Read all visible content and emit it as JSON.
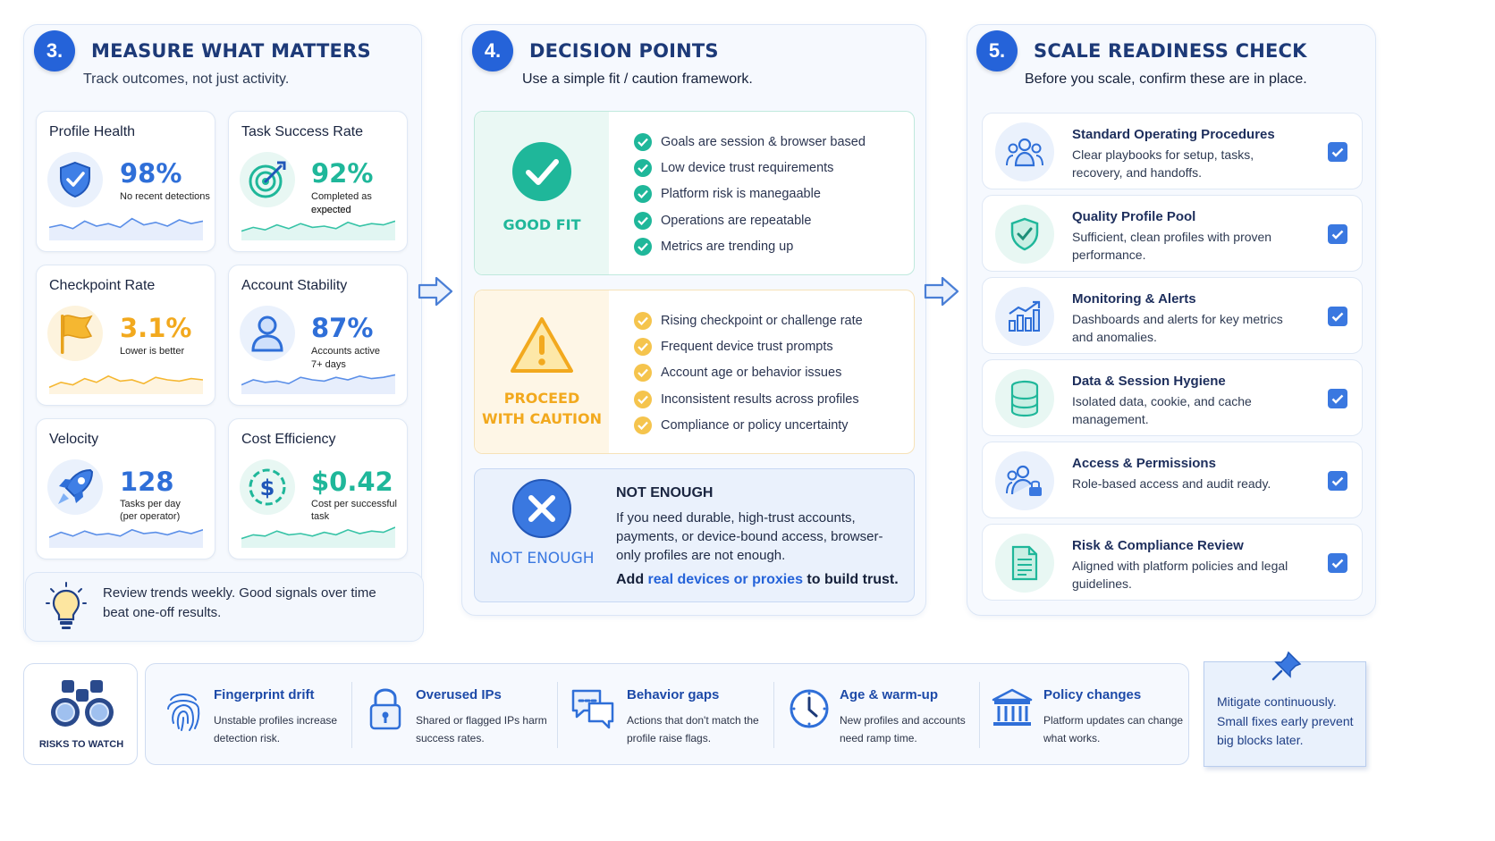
{
  "colors": {
    "brand_blue": "#2563d9",
    "teal": "#1fb79a",
    "amber": "#f5b731",
    "navy": "#1d3a78"
  },
  "section3": {
    "number": "3.",
    "title": "MEASURE WHAT MATTERS",
    "subtitle": "Track outcomes, not just activity.",
    "metrics": [
      {
        "title": "Profile Health",
        "value": "98%",
        "note": "No recent detections",
        "icon": "shield-check-icon",
        "trend": [
          0.45,
          0.55,
          0.4,
          0.7,
          0.5,
          0.6,
          0.45,
          0.8,
          0.55,
          0.65,
          0.5,
          0.75,
          0.6,
          0.7
        ]
      },
      {
        "title": "Task Success Rate",
        "value": "92%",
        "note": "Completed as expected",
        "note2": "expected",
        "icon": "target-icon",
        "trend": [
          0.3,
          0.45,
          0.35,
          0.55,
          0.4,
          0.6,
          0.45,
          0.5,
          0.4,
          0.65,
          0.5,
          0.6,
          0.55,
          0.7
        ]
      },
      {
        "title": "Checkpoint Rate",
        "value": "3.1%",
        "note": "Lower is better",
        "icon": "flag-icon",
        "trend": [
          0.2,
          0.4,
          0.3,
          0.55,
          0.4,
          0.65,
          0.45,
          0.5,
          0.35,
          0.6,
          0.5,
          0.45,
          0.55,
          0.5
        ]
      },
      {
        "title": "Account Stability",
        "value": "87%",
        "note": "Accounts active",
        "note2": "7+ days",
        "icon": "user-icon",
        "trend": [
          0.3,
          0.5,
          0.4,
          0.45,
          0.35,
          0.6,
          0.5,
          0.45,
          0.6,
          0.5,
          0.65,
          0.55,
          0.6,
          0.7
        ]
      },
      {
        "title": "Velocity",
        "value": "128",
        "note": "Tasks per day",
        "note2": "(per operator)",
        "icon": "rocket-icon",
        "trend": [
          0.35,
          0.55,
          0.4,
          0.6,
          0.45,
          0.5,
          0.4,
          0.65,
          0.5,
          0.55,
          0.45,
          0.6,
          0.5,
          0.65
        ]
      },
      {
        "title": "Cost Efficiency",
        "value": "$0.42",
        "note": "Cost per successful",
        "note2": "task",
        "icon": "dollar-icon",
        "trend": [
          0.3,
          0.45,
          0.4,
          0.6,
          0.45,
          0.5,
          0.4,
          0.55,
          0.45,
          0.65,
          0.5,
          0.6,
          0.55,
          0.75
        ]
      }
    ],
    "tip": "Review trends weekly. Good signals over time beat one-off results."
  },
  "section4": {
    "number": "4.",
    "title": "DECISION POINTS",
    "subtitle": "Use a simple fit / caution framework.",
    "good_fit": {
      "label": "GOOD FIT",
      "items": [
        "Goals are session & browser based",
        "Low device trust requirements",
        "Platform risk is manegaable",
        "Operations are repeatable",
        "Metrics are trending up"
      ]
    },
    "caution": {
      "label_line1": "PROCEED",
      "label_line2": "WITH CAUTION",
      "items": [
        "Rising checkpoint or challenge rate",
        "Frequent device trust prompts",
        "Account age or behavior issues",
        "Inconsistent results across profiles",
        "Compliance or policy uncertainty"
      ]
    },
    "not_enough": {
      "label": "NOT ENOUGH",
      "heading": "NOT ENOUGH",
      "body": "If you need durable, high-trust accounts, payments, or device-bound access, browser-only profiles are not enough.",
      "cta_prefix": "Add ",
      "cta_link": "real devices or proxies",
      "cta_suffix": " to build trust."
    }
  },
  "section5": {
    "number": "5.",
    "title": "SCALE READINESS CHECK",
    "subtitle": "Before you scale, confirm these are in place.",
    "items": [
      {
        "title": "Standard Operating Procedures",
        "desc": "Clear playbooks for setup, tasks, recovery, and handoffs.",
        "icon": "team-icon",
        "checked": true
      },
      {
        "title": "Quality Profile Pool",
        "desc": "Sufficient, clean profiles with proven performance.",
        "icon": "shield-check-icon",
        "checked": true
      },
      {
        "title": "Monitoring & Alerts",
        "desc": "Dashboards and alerts for key metrics and anomalies.",
        "icon": "bar-chart-icon",
        "checked": true
      },
      {
        "title": "Data & Session Hygiene",
        "desc": "Isolated data, cookie, and cache management.",
        "icon": "database-icon",
        "checked": true
      },
      {
        "title": "Access & Permissions",
        "desc": "Role-based access and audit ready.",
        "icon": "user-lock-icon",
        "checked": true
      },
      {
        "title": "Risk & Compliance Review",
        "desc": "Aligned with platform policies and legal guidelines.",
        "icon": "document-icon",
        "checked": true
      }
    ]
  },
  "risks": {
    "label": "RISKS TO WATCH",
    "items": [
      {
        "title": "Fingerprint drift",
        "desc_line1": "Unstable profiles increase",
        "desc_line2": "detection risk.",
        "icon": "fingerprint-icon"
      },
      {
        "title": "Overused IPs",
        "desc_line1": "Shared or flagged IPs harm",
        "desc_line2": "success rates.",
        "icon": "padlock-icon"
      },
      {
        "title": "Behavior gaps",
        "desc_line1": "Actions that don't match the",
        "desc_line2": "profile raise flags.",
        "icon": "chat-icon"
      },
      {
        "title": "Age & warm-up",
        "desc_line1": "New profiles and accounts",
        "desc_line2": "need ramp time.",
        "icon": "clock-icon"
      },
      {
        "title": "Policy changes",
        "desc_line1": "Platform updates can change",
        "desc_line2": "what works.",
        "icon": "bank-icon"
      }
    ],
    "note": "Mitigate continuously. Small fixes early prevent big blocks later."
  }
}
